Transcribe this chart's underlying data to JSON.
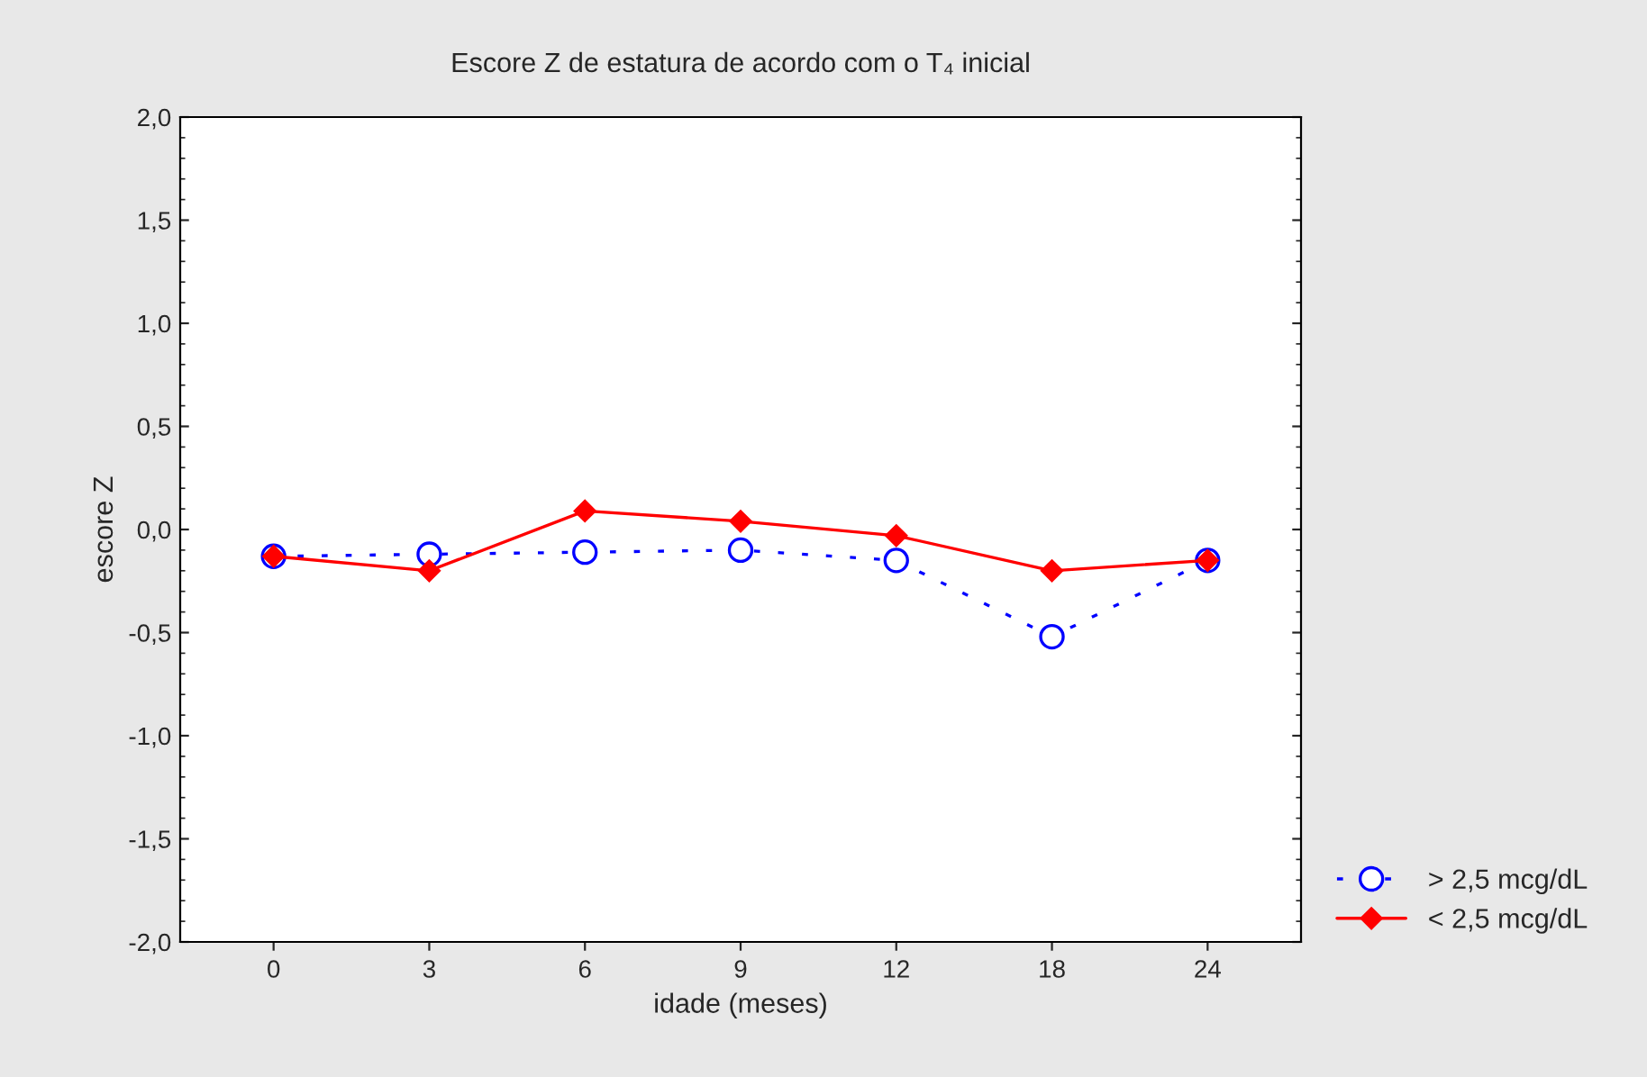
{
  "chart_data": {
    "type": "line",
    "title": "Escore Z de estatura de acordo com o T₄ inicial",
    "xlabel": "idade (meses)",
    "ylabel": "escore Z",
    "categories": [
      "0",
      "3",
      "6",
      "9",
      "12",
      "18",
      "24"
    ],
    "series": [
      {
        "name": "> 2,5 mcg/dL",
        "color": "#0000ff",
        "values": [
          -0.13,
          -0.12,
          -0.11,
          -0.1,
          -0.15,
          -0.52,
          -0.15
        ],
        "marker": "circle",
        "line_style": "dotted"
      },
      {
        "name": "< 2,5 mcg/dL",
        "color": "#ff0000",
        "values": [
          -0.13,
          -0.2,
          0.09,
          0.04,
          -0.03,
          -0.2,
          -0.15
        ],
        "marker": "diamond",
        "line_style": "solid"
      }
    ],
    "ylim": [
      -2.0,
      2.0
    ],
    "yticks": [
      {
        "value": -2.0,
        "label": "-2,0"
      },
      {
        "value": -1.5,
        "label": "-1,5"
      },
      {
        "value": -1.0,
        "label": "-1,0"
      },
      {
        "value": -0.5,
        "label": "-0,5"
      },
      {
        "value": 0.0,
        "label": "0,0"
      },
      {
        "value": 0.5,
        "label": "0,5"
      },
      {
        "value": 1.0,
        "label": "1,0"
      },
      {
        "value": 1.5,
        "label": "1,5"
      },
      {
        "value": 2.0,
        "label": "2,0"
      }
    ],
    "grid": false,
    "legend": "bottom right"
  }
}
